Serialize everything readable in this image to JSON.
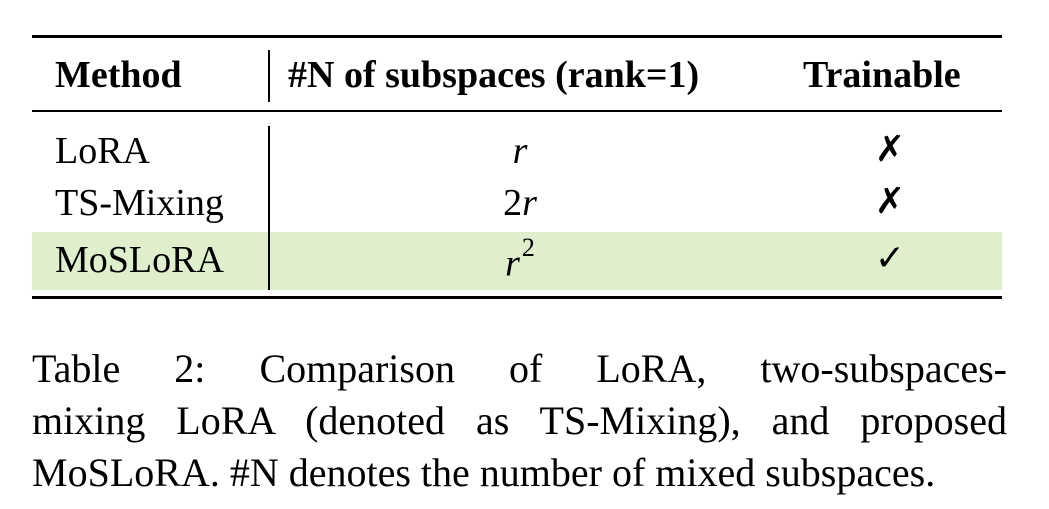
{
  "table": {
    "headers": {
      "method": "Method",
      "subspaces": "#N of subspaces (rank=1)",
      "trainable": "Trainable"
    },
    "rows": [
      {
        "method": "LoRA",
        "coef": "",
        "var": "r",
        "exp": "",
        "trainable": "✗"
      },
      {
        "method": "TS-Mixing",
        "coef": "2",
        "var": "r",
        "exp": "",
        "trainable": "✗"
      },
      {
        "method": "MoSLoRA",
        "coef": "",
        "var": "r",
        "exp": "2",
        "trainable": "✓"
      }
    ],
    "highlight_color": "#dfeecb"
  },
  "caption": {
    "line1": "Table 2:  Comparison of LoRA, two-subspaces-",
    "line2": "mixing LoRA (denoted as TS-Mixing), and proposed",
    "line3": "MoSLoRA. #N denotes the number of mixed subspaces."
  }
}
